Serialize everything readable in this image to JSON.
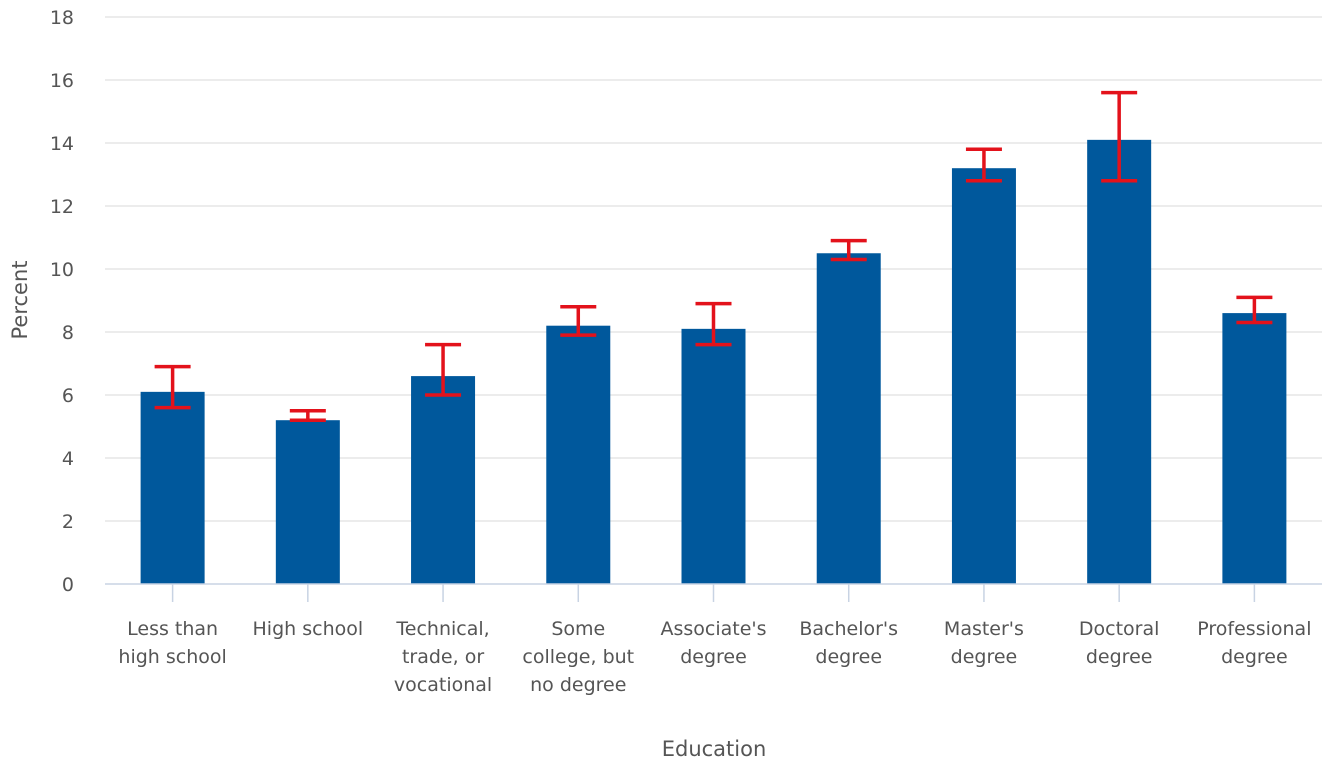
{
  "chart_data": {
    "type": "bar",
    "title": "",
    "xlabel": "Education",
    "ylabel": "Percent",
    "ylim": [
      0,
      18
    ],
    "yticks": [
      "0",
      "2",
      "4",
      "6",
      "8",
      "10",
      "12",
      "14",
      "16",
      "18"
    ],
    "grid": true,
    "categories": [
      [
        "Less than",
        "high school"
      ],
      [
        "High school"
      ],
      [
        "Technical,",
        "trade, or",
        "vocational"
      ],
      [
        "Some",
        "college, but",
        "no degree"
      ],
      [
        "Associate's",
        "degree"
      ],
      [
        "Bachelor's",
        "degree"
      ],
      [
        "Master's",
        "degree"
      ],
      [
        "Doctoral",
        "degree"
      ],
      [
        "Professional",
        "degree"
      ]
    ],
    "values": [
      6.1,
      5.2,
      6.6,
      8.2,
      8.1,
      10.5,
      13.2,
      14.1,
      8.6
    ],
    "error_low": [
      5.6,
      5.2,
      6.0,
      7.9,
      7.6,
      10.3,
      12.8,
      12.8,
      8.3
    ],
    "error_high": [
      6.9,
      5.5,
      7.6,
      8.8,
      8.9,
      10.9,
      13.8,
      15.6,
      9.1
    ],
    "colors": {
      "bar": "#00589c",
      "error": "#e3121b"
    }
  }
}
